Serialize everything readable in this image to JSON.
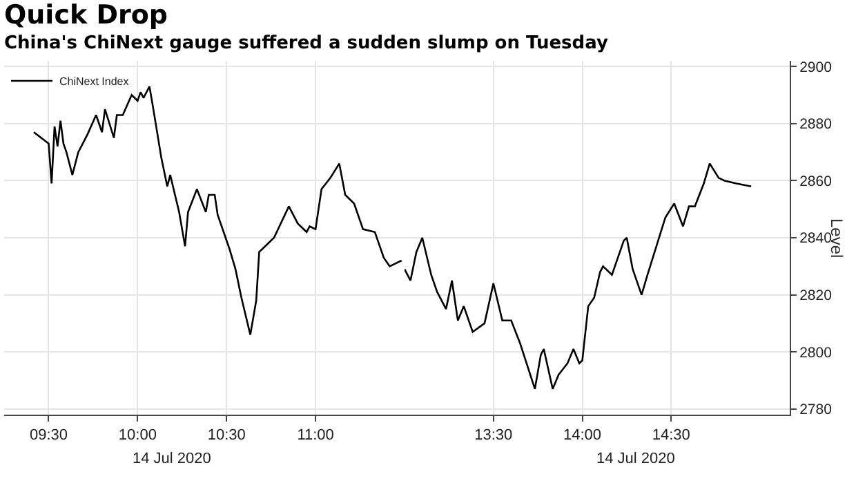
{
  "chart_data": [
    {
      "type": "line",
      "title": "Quick Drop",
      "subtitle": "China's ChiNext gauge suffered a sudden slump on Tuesday",
      "annotations": [
        "14 Jul 2020"
      ],
      "x": [
        "2020-07-14T09:25",
        "2020-07-14T09:30",
        "2020-07-14T09:31",
        "2020-07-14T09:32",
        "2020-07-14T09:33",
        "2020-07-14T09:34",
        "2020-07-14T09:35",
        "2020-07-14T09:36",
        "2020-07-14T09:38",
        "2020-07-14T09:40",
        "2020-07-14T09:43",
        "2020-07-14T09:46",
        "2020-07-14T09:48",
        "2020-07-14T09:49",
        "2020-07-14T09:52",
        "2020-07-14T09:53",
        "2020-07-14T09:55",
        "2020-07-14T09:58",
        "2020-07-14T10:00",
        "2020-07-14T10:01",
        "2020-07-14T10:02",
        "2020-07-14T10:04",
        "2020-07-14T10:05",
        "2020-07-14T10:08",
        "2020-07-14T10:10",
        "2020-07-14T10:11",
        "2020-07-14T10:14",
        "2020-07-14T10:16",
        "2020-07-14T10:17",
        "2020-07-14T10:20",
        "2020-07-14T10:23",
        "2020-07-14T10:24",
        "2020-07-14T10:26",
        "2020-07-14T10:27",
        "2020-07-14T10:31",
        "2020-07-14T10:33",
        "2020-07-14T10:35",
        "2020-07-14T10:38",
        "2020-07-14T10:40",
        "2020-07-14T10:41",
        "2020-07-14T10:44",
        "2020-07-14T10:46",
        "2020-07-14T10:51",
        "2020-07-14T10:54",
        "2020-07-14T10:57",
        "2020-07-14T10:58",
        "2020-07-14T11:00",
        "2020-07-14T11:02",
        "2020-07-14T11:05",
        "2020-07-14T11:08",
        "2020-07-14T11:10",
        "2020-07-14T11:13",
        "2020-07-14T11:16",
        "2020-07-14T11:20",
        "2020-07-14T11:23",
        "2020-07-14T11:25",
        "2020-07-14T11:29"
      ],
      "series": [
        {
          "name": "ChiNext Index",
          "color": "#000000",
          "values": [
            2877,
            2873,
            2859,
            2879,
            2872,
            2881,
            2873,
            2870,
            2862,
            2870,
            2876,
            2883,
            2877,
            2885,
            2875,
            2883,
            2883,
            2890,
            2888,
            2891,
            2889,
            2893,
            2887,
            2868,
            2858,
            2862,
            2849,
            2837,
            2849,
            2857,
            2849,
            2855,
            2855,
            2848,
            2836,
            2829,
            2819,
            2806,
            2818,
            2835,
            2838,
            2840,
            2851,
            2845,
            2842,
            2844,
            2843,
            2857,
            2861,
            2866,
            2855,
            2852,
            2843,
            2842,
            2833,
            2830,
            2832
          ]
        }
      ],
      "xlim": [
        "2020-07-14T09:15",
        "2020-07-14T11:30"
      ],
      "xticks": [
        {
          "value": "2020-07-14T09:30",
          "label": "09:30"
        },
        {
          "value": "2020-07-14T10:00",
          "label": "10:00"
        },
        {
          "value": "2020-07-14T10:30",
          "label": "10:30"
        },
        {
          "value": "2020-07-14T11:00",
          "label": "11:00"
        }
      ],
      "ylim": [
        2778,
        2902
      ],
      "yticks": [
        2780,
        2800,
        2820,
        2840,
        2860,
        2880,
        2900
      ],
      "tick_labels": "x",
      "grid": true,
      "legend": "top left",
      "line_style": "solid"
    },
    {
      "type": "line",
      "ylabel": "Level",
      "annotations": [
        "14 Jul 2020"
      ],
      "x": [
        "2020-07-14T13:00",
        "2020-07-14T13:02",
        "2020-07-14T13:04",
        "2020-07-14T13:06",
        "2020-07-14T13:09",
        "2020-07-14T13:11",
        "2020-07-14T13:14",
        "2020-07-14T13:16",
        "2020-07-14T13:18",
        "2020-07-14T13:20",
        "2020-07-14T13:23",
        "2020-07-14T13:27",
        "2020-07-14T13:30",
        "2020-07-14T13:33",
        "2020-07-14T13:36",
        "2020-07-14T13:39",
        "2020-07-14T13:44",
        "2020-07-14T13:46",
        "2020-07-14T13:47",
        "2020-07-14T13:50",
        "2020-07-14T13:52",
        "2020-07-14T13:55",
        "2020-07-14T13:57",
        "2020-07-14T13:59",
        "2020-07-14T14:00",
        "2020-07-14T14:02",
        "2020-07-14T14:04",
        "2020-07-14T14:06",
        "2020-07-14T14:07",
        "2020-07-14T14:10",
        "2020-07-14T14:14",
        "2020-07-14T14:15",
        "2020-07-14T14:17",
        "2020-07-14T14:20",
        "2020-07-14T14:22",
        "2020-07-14T14:25",
        "2020-07-14T14:28",
        "2020-07-14T14:31",
        "2020-07-14T14:34",
        "2020-07-14T14:36",
        "2020-07-14T14:38",
        "2020-07-14T14:41",
        "2020-07-14T14:43",
        "2020-07-14T14:46",
        "2020-07-14T14:48",
        "2020-07-14T14:52",
        "2020-07-14T14:57"
      ],
      "series": [
        {
          "color": "#000000",
          "values": [
            2829,
            2825,
            2835,
            2840,
            2827,
            2821,
            2815,
            2825,
            2811,
            2816,
            2807,
            2810,
            2824,
            2811,
            2811,
            2803,
            2787,
            2799,
            2801,
            2787,
            2792,
            2796,
            2801,
            2796,
            2797,
            2816,
            2819,
            2828,
            2830,
            2827,
            2839,
            2840,
            2829,
            2820,
            2827,
            2837,
            2847,
            2852,
            2844,
            2851,
            2851,
            2859,
            2866,
            2861,
            2860,
            2859,
            2858
          ]
        }
      ],
      "xlim": [
        "2020-07-14T13:00",
        "2020-07-14T15:10"
      ],
      "xticks": [
        {
          "value": "2020-07-14T13:30",
          "label": "13:30"
        },
        {
          "value": "2020-07-14T14:00",
          "label": "14:00"
        },
        {
          "value": "2020-07-14T14:30",
          "label": "14:30"
        }
      ],
      "ylim": [
        2778,
        2902
      ],
      "yticks": [
        2780,
        2800,
        2820,
        2840,
        2860,
        2880,
        2900
      ],
      "grid": true,
      "line_style": "solid"
    }
  ]
}
